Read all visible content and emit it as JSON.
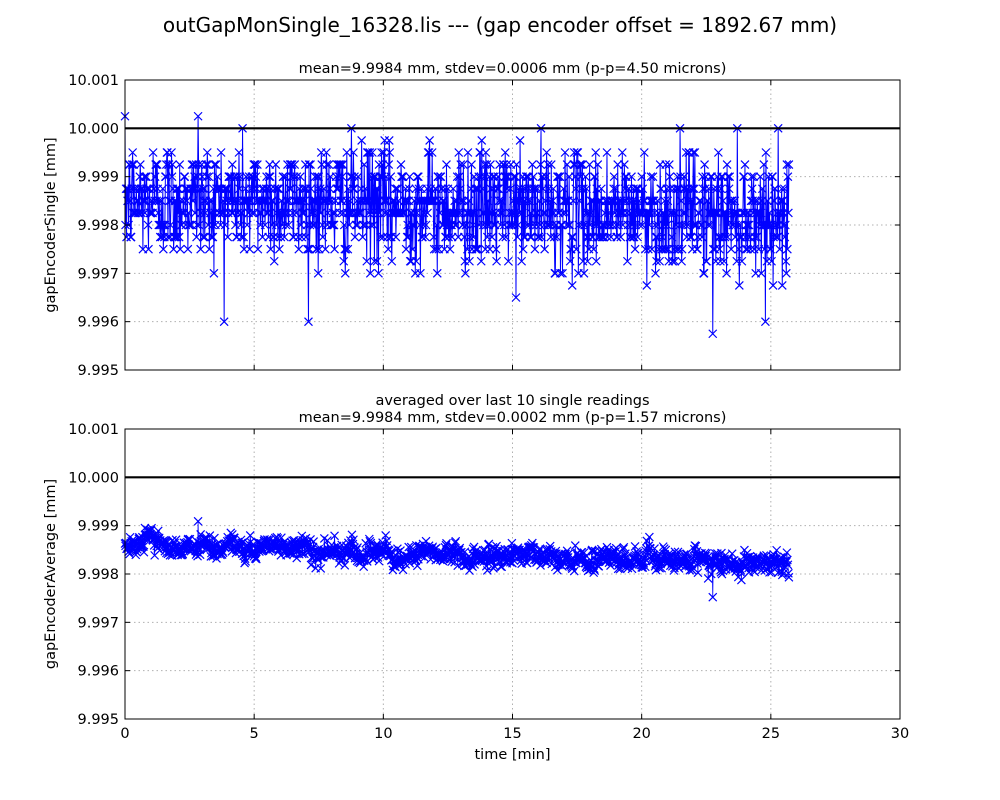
{
  "figure": {
    "title": "outGapMonSingle_16328.lis --- (gap encoder offset = 1892.67 mm)"
  },
  "chart_data": [
    {
      "type": "line",
      "title_lines": [
        "mean=9.9984 mm, stdev=0.0006 mm (p-p=4.50 microns)"
      ],
      "xlabel": "",
      "ylabel": "gapEncoderSingle [mm]",
      "xlim": [
        0,
        30
      ],
      "ylim": [
        9.995,
        10.001
      ],
      "xticks": [
        0,
        5,
        10,
        15,
        20,
        25,
        30
      ],
      "yticks": [
        "9.995",
        "9.996",
        "9.997",
        "9.998",
        "9.999",
        "10.000",
        "10.001"
      ],
      "show_xtick_labels": false,
      "grid": true,
      "reference_line": 10.0,
      "series": [
        {
          "color": "#0000ff",
          "marker": "x",
          "samples": 1300,
          "x_range": [
            0,
            25.7
          ],
          "mean_start": 9.99855,
          "mean_end": 9.9982,
          "stdev": 0.0006,
          "min": 9.99575,
          "max": 10.00025
        }
      ]
    },
    {
      "type": "line",
      "title_lines": [
        "averaged over last 10 single readings",
        "mean=9.9984 mm, stdev=0.0002 mm (p-p=1.57 microns)"
      ],
      "xlabel": "time [min]",
      "ylabel": "gapEncoderAverage [mm]",
      "xlim": [
        0,
        30
      ],
      "ylim": [
        9.995,
        10.001
      ],
      "xticks": [
        0,
        5,
        10,
        15,
        20,
        25,
        30
      ],
      "yticks": [
        "9.995",
        "9.996",
        "9.997",
        "9.998",
        "9.999",
        "10.000",
        "10.001"
      ],
      "show_xtick_labels": true,
      "grid": true,
      "reference_line": 10.0,
      "series": [
        {
          "color": "#0000ff",
          "marker": "x",
          "samples": 1300,
          "x_range": [
            0,
            25.7
          ],
          "mean_start": 9.99865,
          "mean_end": 9.9982,
          "stdev": 0.0002,
          "min": 9.99752,
          "max": 9.99909
        }
      ]
    }
  ]
}
